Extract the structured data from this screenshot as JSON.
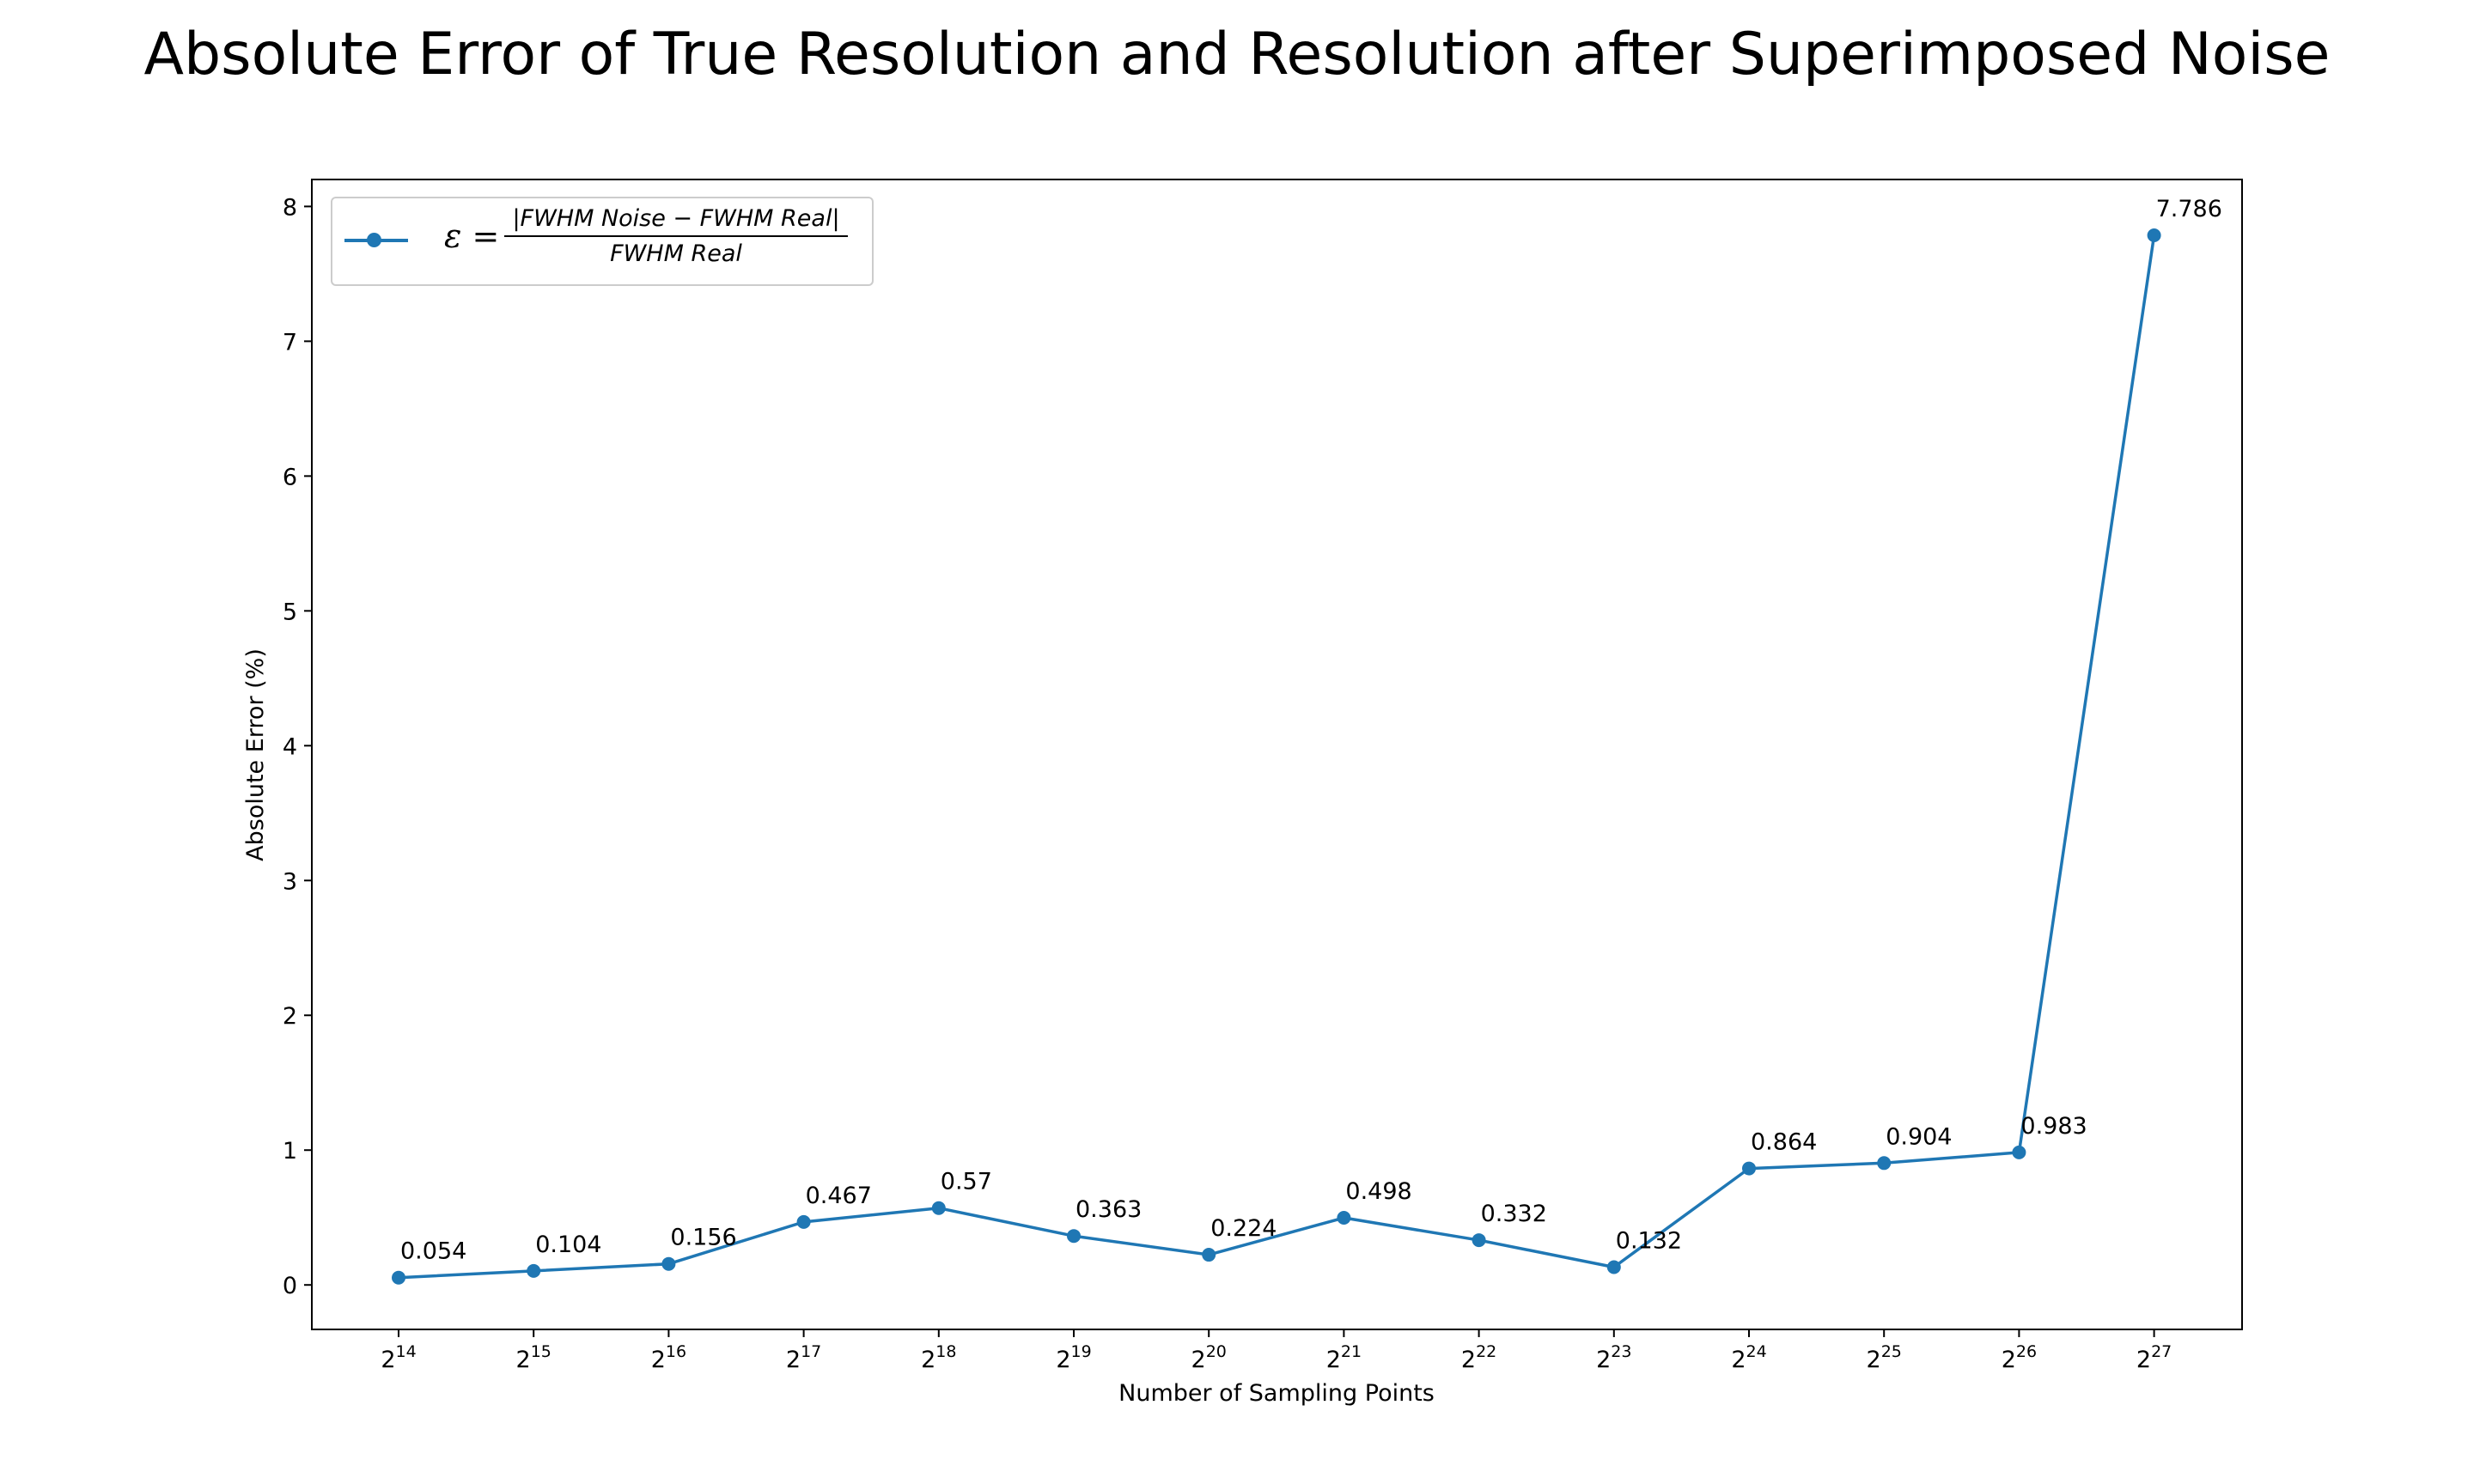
{
  "chart_data": {
    "type": "line",
    "title": "Absolute Error of True Resolution and Resolution after Superimposed Noise",
    "xlabel": "Number of Sampling Points",
    "ylabel": "Absolute Error (%)",
    "x_tick_base": "2",
    "x_exponents": [
      "14",
      "15",
      "16",
      "17",
      "18",
      "19",
      "20",
      "21",
      "22",
      "23",
      "24",
      "25",
      "26",
      "27"
    ],
    "y_ticks": [
      "0",
      "1",
      "2",
      "3",
      "4",
      "5",
      "6",
      "7",
      "8"
    ],
    "ylim": [
      -0.33,
      8.2
    ],
    "grid": false,
    "legend_position": "top-left",
    "series": [
      {
        "name": "ε = |FWHM Noise − FWHM Real| / FWHM Real",
        "color": "#1f77b4",
        "values": [
          0.054,
          0.104,
          0.156,
          0.467,
          0.57,
          0.363,
          0.224,
          0.498,
          0.332,
          0.132,
          0.864,
          0.904,
          0.983,
          7.786
        ],
        "labels": [
          "0.054",
          "0.104",
          "0.156",
          "0.467",
          "0.57",
          "0.363",
          "0.224",
          "0.498",
          "0.332",
          "0.132",
          "0.864",
          "0.904",
          "0.983",
          "7.786"
        ]
      }
    ]
  },
  "legend": {
    "symbol": "ε =",
    "numerator": "|FWHM Noise − FWHM Real|",
    "denominator": "FWHM Real"
  }
}
